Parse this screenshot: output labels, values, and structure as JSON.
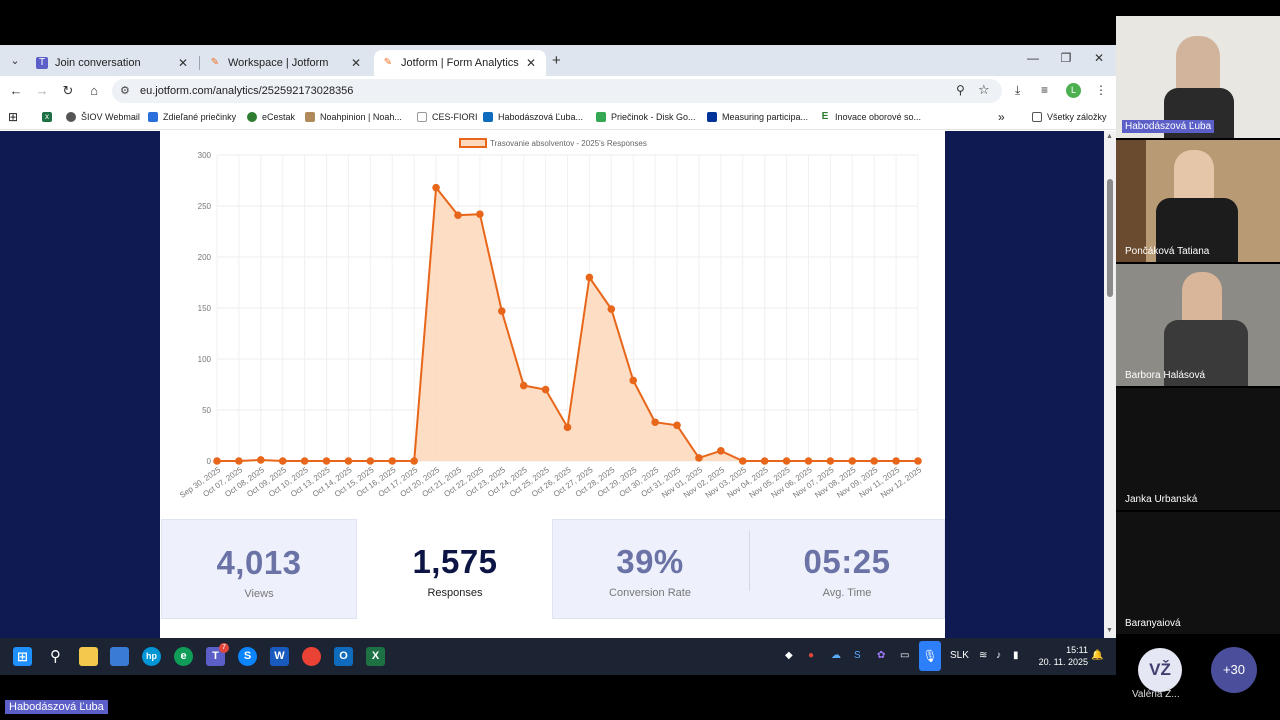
{
  "browser": {
    "tabs": [
      {
        "title": "Join conversation",
        "active": false
      },
      {
        "title": "Workspace | Jotform",
        "active": false
      },
      {
        "title": "Jotform | Form Analytics",
        "active": true
      }
    ],
    "url": "eu.jotform.com/analytics/252592173028356",
    "bookmarks": [
      "ŠIOV Webmail",
      "Zdieľané priečinky",
      "eCestak",
      "Noahpinion | Noah...",
      "CES-FIORI",
      "Habodászová Ľuba...",
      "Priečinok - Disk Go...",
      "Measuring participa...",
      "Inovace oborové so...",
      "Všetky záložky"
    ],
    "profile_initial": "L"
  },
  "stats": {
    "views_value": "4,013",
    "views_label": "Views",
    "responses_value": "1,575",
    "responses_label": "Responses",
    "conversion_value": "39%",
    "conversion_label": "Conversion Rate",
    "avg_time_value": "05:25",
    "avg_time_label": "Avg. Time"
  },
  "chart_data": {
    "type": "area",
    "legend": "Trasovanie absolventov - 2025's Responses",
    "legend_position": "top",
    "ylim": [
      0,
      300
    ],
    "yticks": [
      0,
      50,
      100,
      150,
      200,
      250,
      300
    ],
    "grid": true,
    "series_color": "#e8661a",
    "fill_color": "#fdd9bd",
    "categories": [
      "Sep 30, 2025",
      "Oct 07, 2025",
      "Oct 08, 2025",
      "Oct 09, 2025",
      "Oct 10, 2025",
      "Oct 13, 2025",
      "Oct 14, 2025",
      "Oct 15, 2025",
      "Oct 16, 2025",
      "Oct 17, 2025",
      "Oct 20, 2025",
      "Oct 21, 2025",
      "Oct 22, 2025",
      "Oct 23, 2025",
      "Oct 24, 2025",
      "Oct 25, 2025",
      "Oct 26, 2025",
      "Oct 27, 2025",
      "Oct 28, 2025",
      "Oct 29, 2025",
      "Oct 30, 2025",
      "Oct 31, 2025",
      "Nov 01, 2025",
      "Nov 02, 2025",
      "Nov 03, 2025",
      "Nov 04, 2025",
      "Nov 05, 2025",
      "Nov 06, 2025",
      "Nov 07, 2025",
      "Nov 08, 2025",
      "Nov 09, 2025",
      "Nov 11, 2025",
      "Nov 12, 2025"
    ],
    "values": [
      0,
      0,
      1,
      0,
      0,
      0,
      0,
      0,
      0,
      0,
      268,
      241,
      242,
      147,
      74,
      70,
      33,
      180,
      149,
      79,
      38,
      35,
      3,
      10,
      0,
      0,
      0,
      0,
      0,
      0,
      0,
      0,
      0
    ]
  },
  "taskbar": {
    "language": "SLK",
    "time": "15:11",
    "date": "20. 11. 2025",
    "teams_badge": "7"
  },
  "participants": [
    {
      "name": "Habodászová Ľuba",
      "highlighted": true
    },
    {
      "name": "Pončáková Tatiana",
      "highlighted": false
    },
    {
      "name": "Barbora Halásová",
      "highlighted": false
    },
    {
      "name": "Janka Urbanská",
      "highlighted": false
    },
    {
      "name": "Baranyaiová",
      "highlighted": false
    }
  ],
  "extra_participant": {
    "initials": "VŽ",
    "name": "Valéria Ž..."
  },
  "more_count": "+30",
  "presenter_name": "Habodászová Ľuba"
}
